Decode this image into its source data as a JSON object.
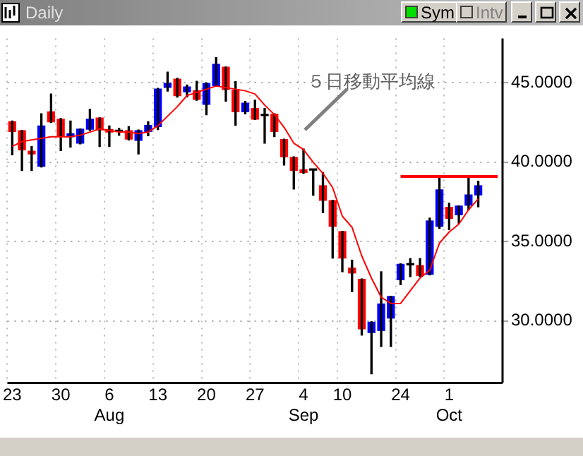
{
  "chart_data": {
    "type": "candlestick",
    "title": "Daily",
    "categories": [
      "23",
      null,
      null,
      null,
      null,
      "30",
      null,
      null,
      null,
      null,
      "6\nAug",
      null,
      null,
      null,
      null,
      "13",
      null,
      null,
      null,
      null,
      "20",
      null,
      null,
      null,
      null,
      "27",
      null,
      null,
      null,
      null,
      "4\nSep",
      null,
      null,
      null,
      "10",
      null,
      null,
      null,
      null,
      null,
      "24",
      null,
      null,
      null,
      null,
      "1\nOct",
      null,
      null,
      null,
      null,
      null
    ],
    "ohlc": [
      [
        42.55,
        42.6,
        40.47,
        41.93
      ],
      [
        41.98,
        42.0,
        39.48,
        40.78
      ],
      [
        40.7,
        40.99,
        39.48,
        40.52
      ],
      [
        39.74,
        43.05,
        39.7,
        42.29
      ],
      [
        43.18,
        44.3,
        42.5,
        42.55
      ],
      [
        42.71,
        42.75,
        40.73,
        41.67
      ],
      [
        41.6,
        42.6,
        40.96,
        41.8
      ],
      [
        41.2,
        42.1,
        41.15,
        42.08
      ],
      [
        42.08,
        43.33,
        42.0,
        42.71
      ],
      [
        42.79,
        42.8,
        40.99,
        42.03
      ],
      [
        42.06,
        42.29,
        40.99,
        41.9
      ],
      [
        41.93,
        42.14,
        41.7,
        41.93
      ],
      [
        41.98,
        42.24,
        41.4,
        41.46
      ],
      [
        41.38,
        42.03,
        40.52,
        41.98
      ],
      [
        41.93,
        42.55,
        41.67,
        42.32
      ],
      [
        42.24,
        44.65,
        42.06,
        44.61
      ],
      [
        44.71,
        45.68,
        44.48,
        44.97
      ],
      [
        45.23,
        45.29,
        44.1,
        44.19
      ],
      [
        44.43,
        44.87,
        44.11,
        44.74
      ],
      [
        44.5,
        45.1,
        43.9,
        43.96
      ],
      [
        43.65,
        45.0,
        42.99,
        44.97
      ],
      [
        44.82,
        46.59,
        44.8,
        46.17
      ],
      [
        45.99,
        46.0,
        43.85,
        44.58
      ],
      [
        44.53,
        45.08,
        42.32,
        43.18
      ],
      [
        43.18,
        43.83,
        43.05,
        43.72
      ],
      [
        43.39,
        43.91,
        42.7,
        42.71
      ],
      [
        42.93,
        43.39,
        41.2,
        42.93
      ],
      [
        43.02,
        43.05,
        41.61,
        41.93
      ],
      [
        41.43,
        41.45,
        39.82,
        40.34
      ],
      [
        40.31,
        40.34,
        38.31,
        39.48
      ],
      [
        39.53,
        40.83,
        39.3,
        39.35
      ],
      [
        39.5,
        39.5,
        37.92,
        39.5
      ],
      [
        38.52,
        39.35,
        36.82,
        37.6
      ],
      [
        37.58,
        37.6,
        33.96,
        35.96
      ],
      [
        35.63,
        35.65,
        33.1,
        33.96
      ],
      [
        33.33,
        33.83,
        31.85,
        33.02
      ],
      [
        32.63,
        32.65,
        29.11,
        29.5
      ],
      [
        29.27,
        29.95,
        26.67,
        29.92
      ],
      [
        29.4,
        33.1,
        28.39,
        31.07
      ],
      [
        30.18,
        31.55,
        28.39,
        31.54
      ],
      [
        32.6,
        33.6,
        32.29,
        33.57
      ],
      [
        33.53,
        33.93,
        32.79,
        33.53
      ],
      [
        33.49,
        33.93,
        32.8,
        32.86
      ],
      [
        32.94,
        36.48,
        32.9,
        36.3
      ],
      [
        35.96,
        39.09,
        35.83,
        38.26
      ],
      [
        37.16,
        37.42,
        35.76,
        36.46
      ],
      [
        36.69,
        37.25,
        36.15,
        37.24
      ],
      [
        37.29,
        39.09,
        37.0,
        37.94
      ],
      [
        37.94,
        38.8,
        37.19,
        38.52
      ],
      null,
      null
    ],
    "colors": [
      "#ff0000",
      "#ff0000",
      "#ff0000",
      "#0000ff",
      "#ff0000",
      "#ff0000",
      "#0000ff",
      "#0000ff",
      "#0000ff",
      "#ff0000",
      "#ff0000",
      "#000000",
      "#ff0000",
      "#0000ff",
      "#0000ff",
      "#0000ff",
      "#0000ff",
      "#ff0000",
      "#0000ff",
      "#ff0000",
      "#0000ff",
      "#0000ff",
      "#ff0000",
      "#ff0000",
      "#0000ff",
      "#ff0000",
      "#000000",
      "#ff0000",
      "#ff0000",
      "#ff0000",
      "#ff0000",
      "#000000",
      "#ff0000",
      "#ff0000",
      "#ff0000",
      "#ff0000",
      "#ff0000",
      "#0000ff",
      "#0000ff",
      "#0000ff",
      "#0000ff",
      "#000000",
      "#ff0000",
      "#0000ff",
      "#0000ff",
      "#ff0000",
      "#0000ff",
      "#0000ff",
      "#0000ff",
      null,
      null
    ],
    "series": [
      {
        "type": "line",
        "color": "#ff0000",
        "values": [
          41.0,
          41.3,
          41.4,
          41.5,
          41.6,
          41.6,
          41.6,
          41.7,
          41.9,
          42.1,
          42.0,
          41.9,
          41.9,
          41.8,
          41.9,
          42.3,
          42.9,
          43.5,
          44.2,
          44.4,
          44.6,
          44.8,
          44.7,
          44.6,
          44.5,
          44.3,
          43.6,
          43.0,
          42.2,
          41.2,
          40.8,
          40.0,
          39.3,
          38.4,
          36.6,
          35.9,
          34.1,
          32.7,
          31.5,
          31.1,
          31.1,
          31.9,
          32.7,
          33.2,
          34.9,
          35.6,
          36.1,
          37.0,
          37.7,
          null,
          null
        ]
      },
      {
        "type": "line",
        "color": "#ff0000",
        "values": [
          null,
          null,
          null,
          null,
          null,
          null,
          null,
          null,
          null,
          null,
          null,
          null,
          null,
          null,
          null,
          null,
          null,
          null,
          null,
          null,
          null,
          null,
          null,
          null,
          null,
          null,
          null,
          null,
          null,
          null,
          null,
          null,
          null,
          null,
          null,
          null,
          null,
          null,
          null,
          null,
          39.1,
          39.1,
          39.1,
          39.1,
          39.1,
          39.1,
          39.1,
          39.1,
          39.1,
          39.1,
          39.1
        ]
      }
    ],
    "ylim": [
      26.1,
      47.8
    ],
    "yticks": [
      {
        "value": 30,
        "label": "30.0000"
      },
      {
        "value": 35,
        "label": "35.0000"
      },
      {
        "value": 40,
        "label": "40.0000"
      },
      {
        "value": 45,
        "label": "45.0000"
      }
    ],
    "grid": true,
    "legend": false,
    "marker": "none",
    "line_style": "solid",
    "annotations": [
      "５日移動平均線",
      "Sym",
      "Intv"
    ]
  }
}
